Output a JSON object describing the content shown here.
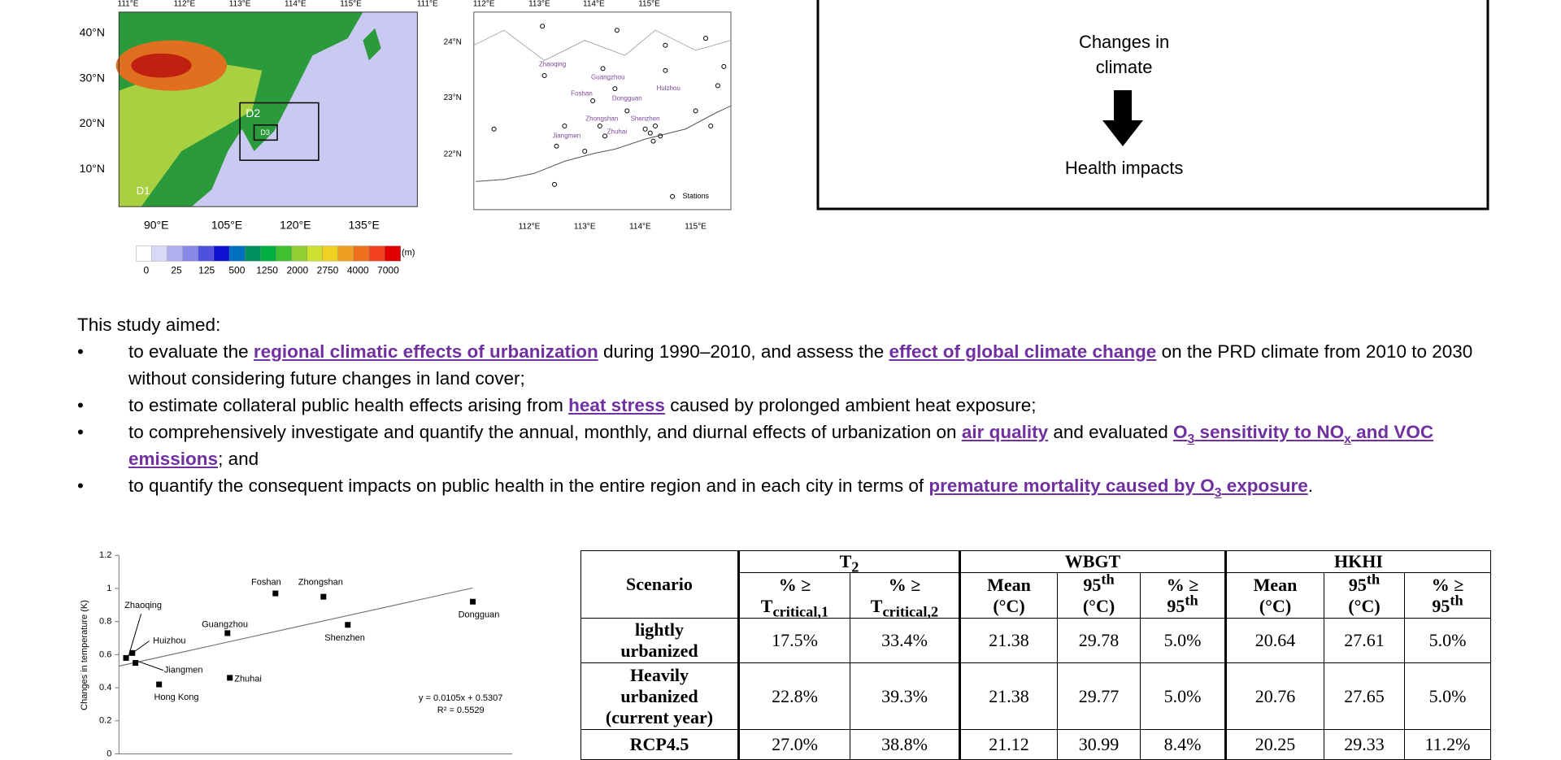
{
  "map_domains": {
    "top_labels": [
      "111°E",
      "112°E",
      "113°E",
      "114°E",
      "115°E",
      "111°E"
    ],
    "lat_labels": [
      "40°N",
      "30°N",
      "20°N",
      "10°N"
    ],
    "lon_labels": [
      "90°E",
      "105°E",
      "120°E",
      "135°E"
    ],
    "domain_labels": [
      "D1",
      "D2",
      "D3"
    ],
    "colorbar": {
      "labels": [
        "0",
        "25",
        "125",
        "500",
        "1250",
        "2000",
        "2750",
        "4000",
        "7000"
      ],
      "unit": "(m)"
    }
  },
  "map_stations": {
    "top_labels": [
      "112°E",
      "113°E",
      "114°E",
      "115°E"
    ],
    "lat_labels": [
      "24°N",
      "23°N",
      "22°N"
    ],
    "lon_labels": [
      "112°E",
      "113°E",
      "114°E",
      "115°E"
    ],
    "cities": [
      "Zhaoqing",
      "Guangzhou",
      "Foshan",
      "Dongguan",
      "Huizhou",
      "Jiangmen",
      "Zhongshan",
      "Shenzhen",
      "Zhuhai"
    ],
    "legend": "Stations"
  },
  "flow": {
    "top": [
      "Changes in",
      "climate"
    ],
    "bottom": "Health impacts"
  },
  "aims": {
    "intro": "This study aimed:",
    "bullets": [
      [
        "to evaluate the ",
        {
          "text": "regional climatic effects of urbanization",
          "style": "link"
        },
        " during 1990–2010, and assess the ",
        {
          "text": "effect of global climate change",
          "style": "link"
        },
        " on the PRD climate from 2010 to 2030 without considering future changes in land cover;"
      ],
      [
        "to estimate collateral public health effects arising from ",
        {
          "text": "heat stress",
          "style": "link"
        },
        " caused by prolonged ambient heat exposure;"
      ],
      [
        "to comprehensively investigate and quantify the annual, monthly, and diurnal effects of urbanization on ",
        {
          "text": "air quality",
          "style": "link"
        },
        " and evaluated ",
        {
          "text": "O",
          "style": "link"
        },
        {
          "text": "3",
          "style": "link-sub"
        },
        {
          "text": " sensitivity to NO",
          "style": "link"
        },
        {
          "text": "x",
          "style": "link-sub"
        },
        {
          "text": " and VOC emissions",
          "style": "link"
        },
        "; and"
      ],
      [
        "to quantify the consequent impacts on public health in the entire region and in each city in terms of ",
        {
          "text": "premature mortality caused by O",
          "style": "link"
        },
        {
          "text": "3",
          "style": "link-sub"
        },
        {
          "text": " exposure",
          "style": "link"
        },
        "."
      ]
    ]
  },
  "scatter": {
    "type": "scatter",
    "y_label": "Changes in temperature (K)",
    "labels": [
      "Zhaoqing",
      "Huizhou",
      "Jiangmen",
      "Hong Kong",
      "Zhuhai",
      "Guangzhou",
      "Foshan",
      "Zhongshan",
      "Shenzhen",
      "Dongguan"
    ],
    "x": [
      0.9,
      1.7,
      2.1,
      5.1,
      14.1,
      13.8,
      19.9,
      26,
      29.1,
      45
    ],
    "y": [
      0.58,
      0.61,
      0.55,
      0.42,
      0.46,
      0.73,
      0.97,
      0.95,
      0.78,
      0.92
    ],
    "xlim": [
      0,
      50
    ],
    "ylim": [
      0,
      1.2
    ],
    "yticks": [
      0,
      0.2,
      0.4,
      0.6,
      0.8,
      1,
      1.2
    ],
    "color": "#000000",
    "trendline": {
      "slope": 0.0105,
      "intercept": 0.5307,
      "label": "y = 0.0105x + 0.5307",
      "r2_label": "R² = 0.5529"
    }
  },
  "table": {
    "scenario_header": "Scenario",
    "groups": [
      [
        [
          "T",
          {
            "sub": "2"
          }
        ]
      ],
      [
        "WBGT"
      ],
      [
        "HKHI"
      ]
    ],
    "subheaders": [
      [
        [
          "% ≥"
        ],
        [
          "T",
          {
            "sub": "critical,1"
          }
        ]
      ],
      [
        [
          "% ≥"
        ],
        [
          "T",
          {
            "sub": "critical,2"
          }
        ]
      ],
      [
        [
          "Mean"
        ],
        [
          "(°C)"
        ]
      ],
      [
        [
          "95",
          {
            "sup": "th"
          }
        ],
        [
          "(°C)"
        ]
      ],
      [
        [
          "% ≥"
        ],
        [
          "95",
          {
            "sup": "th"
          }
        ]
      ],
      [
        [
          "Mean"
        ],
        [
          "(°C)"
        ]
      ],
      [
        [
          "95",
          {
            "sup": "th"
          }
        ],
        [
          "(°C)"
        ]
      ],
      [
        [
          "% ≥"
        ],
        [
          "95",
          {
            "sup": "th"
          }
        ]
      ]
    ],
    "rows": [
      [
        [
          "lightly",
          "urbanized"
        ],
        "17.5%",
        "33.4%",
        "21.38",
        "29.78",
        "5.0%",
        "20.64",
        "27.61",
        "5.0%"
      ],
      [
        [
          "Heavily",
          "urbanized",
          "(current year)"
        ],
        "22.8%",
        "39.3%",
        "21.38",
        "29.77",
        "5.0%",
        "20.76",
        "27.65",
        "5.0%"
      ],
      [
        [
          "RCP4.5"
        ],
        "27.0%",
        "38.8%",
        "21.12",
        "30.99",
        "8.4%",
        "20.25",
        "29.33",
        "11.2%"
      ]
    ]
  }
}
